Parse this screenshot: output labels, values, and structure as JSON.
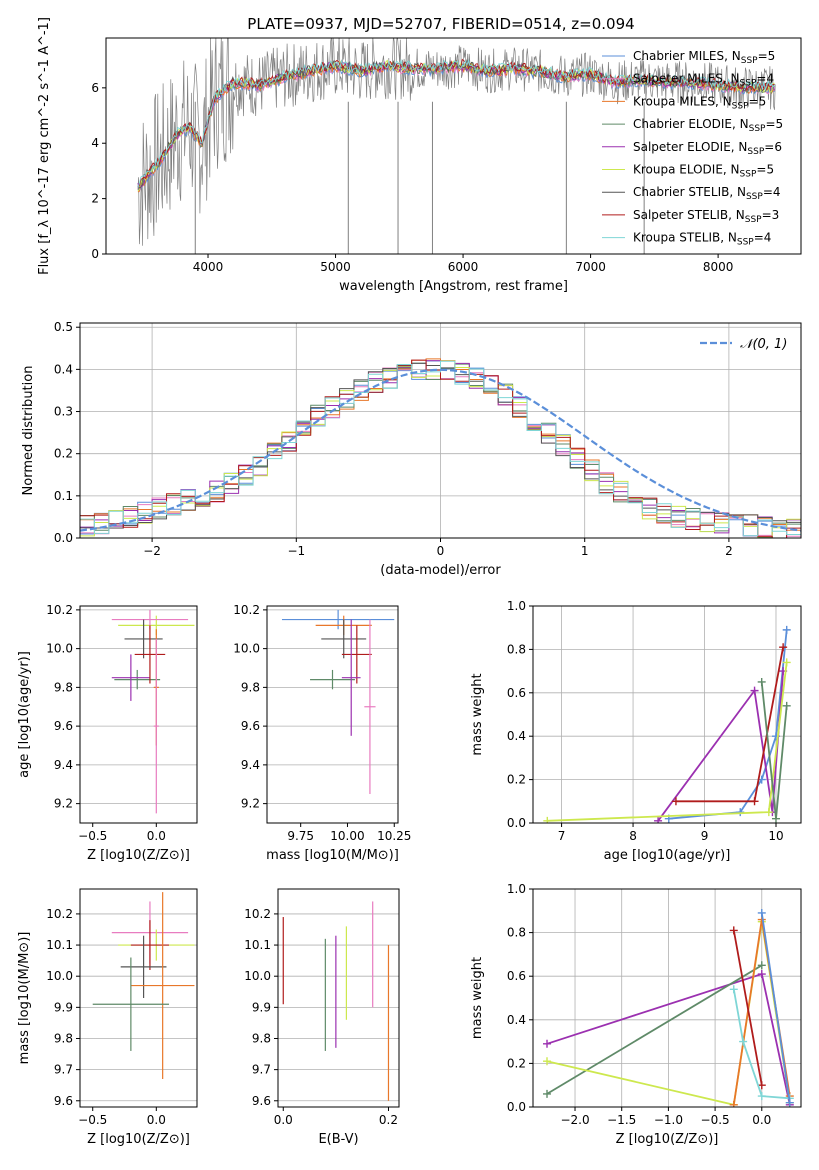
{
  "figure_title": "PLATE=0937, MJD=52707, FIBERID=0514, z=0.094",
  "colors": {
    "chabrier_miles": "#5b8fd9",
    "salpeter_miles": "#e87cc0",
    "kroupa_miles": "#e8772a",
    "chabrier_elodie": "#5f8a68",
    "salpeter_elodie": "#9b30b0",
    "kroupa_elodie": "#cde84e",
    "chabrier_stelib": "#555555",
    "salpeter_stelib": "#b01c1c",
    "kroupa_stelib": "#7fd6d6"
  },
  "chart_data": [
    {
      "id": "spectrum",
      "type": "line",
      "xlabel": "wavelength [Angstrom, rest frame]",
      "ylabel": "Flux [f_λ 10^-17 erg cm^-2 s^-1 A^-1]",
      "xlim": [
        3200,
        8650
      ],
      "ylim": [
        0,
        7.8
      ],
      "xticks": [
        4000,
        5000,
        6000,
        7000,
        8000
      ],
      "yticks": [
        0,
        2,
        4,
        6
      ],
      "legend_position": "right",
      "legend": [
        {
          "label": "Chabrier MILES, N",
          "sub": "SSP",
          "value": "=5",
          "color_key": "chabrier_miles"
        },
        {
          "label": "Salpeter MILES, N",
          "sub": "SSP",
          "value": "=4",
          "color_key": "salpeter_miles"
        },
        {
          "label": "Kroupa MILES, N",
          "sub": "SSP",
          "value": "=5",
          "color_key": "kroupa_miles"
        },
        {
          "label": "Chabrier ELODIE, N",
          "sub": "SSP",
          "value": "=5",
          "color_key": "chabrier_elodie"
        },
        {
          "label": "Salpeter ELODIE, N",
          "sub": "SSP",
          "value": "=6",
          "color_key": "salpeter_elodie"
        },
        {
          "label": "Kroupa ELODIE, N",
          "sub": "SSP",
          "value": "=5",
          "color_key": "kroupa_elodie"
        },
        {
          "label": "Chabrier STELIB, N",
          "sub": "SSP",
          "value": "=4",
          "color_key": "chabrier_stelib"
        },
        {
          "label": "Salpeter STELIB, N",
          "sub": "SSP",
          "value": "=3",
          "color_key": "salpeter_stelib"
        },
        {
          "label": "Kroupa STELIB, N",
          "sub": "SSP",
          "value": "=4",
          "color_key": "kroupa_stelib"
        }
      ],
      "data_series": {
        "x": [
          3450,
          3550,
          3650,
          3750,
          3850,
          3950,
          4050,
          4200,
          4400,
          4600,
          4800,
          5000,
          5200,
          5400,
          5600,
          5800,
          6000,
          6200,
          6400,
          6600,
          6800,
          7000,
          7200,
          7400,
          7600,
          7800,
          8000,
          8200,
          8400
        ],
        "y": [
          2.4,
          3.0,
          3.5,
          4.3,
          4.6,
          4.0,
          5.6,
          6.2,
          6.1,
          6.4,
          6.6,
          6.8,
          6.6,
          6.8,
          6.7,
          6.7,
          6.8,
          6.6,
          6.7,
          6.6,
          6.4,
          6.5,
          6.2,
          6.3,
          6.2,
          6.2,
          6.1,
          6.0,
          6.0
        ]
      },
      "spikes": [
        {
          "x": 3900,
          "y": 0
        },
        {
          "x": 5100,
          "y": 0
        },
        {
          "x": 5490,
          "y": 0
        },
        {
          "x": 5760,
          "y": 0
        },
        {
          "x": 6810,
          "y": 0
        },
        {
          "x": 7420,
          "y": 0
        }
      ]
    },
    {
      "id": "residuals",
      "type": "line",
      "xlabel": "(data-model)/error",
      "ylabel": "Normed distribution",
      "xlim": [
        -2.5,
        2.5
      ],
      "ylim": [
        0,
        0.51
      ],
      "xticks": [
        -2,
        -1,
        0,
        1,
        2
      ],
      "yticks": [
        0.0,
        0.1,
        0.2,
        0.3,
        0.4,
        0.5
      ],
      "grid": true,
      "legend_position": "top-right",
      "legend": [
        {
          "label": "𝒩(0, 1)",
          "style": "dashed",
          "color": "#5b8fd9"
        }
      ],
      "bin_width": 0.1,
      "hist_values": [
        0.03,
        0.035,
        0.04,
        0.05,
        0.06,
        0.07,
        0.08,
        0.09,
        0.1,
        0.11,
        0.13,
        0.15,
        0.17,
        0.2,
        0.23,
        0.26,
        0.29,
        0.31,
        0.33,
        0.35,
        0.37,
        0.38,
        0.39,
        0.4,
        0.4,
        0.4,
        0.39,
        0.38,
        0.36,
        0.34,
        0.31,
        0.28,
        0.25,
        0.22,
        0.19,
        0.16,
        0.13,
        0.11,
        0.09,
        0.07,
        0.06,
        0.05,
        0.045,
        0.04,
        0.035,
        0.03,
        0.03,
        0.025,
        0.02,
        0.02
      ]
    },
    {
      "id": "age_vs_Z",
      "type": "scatter",
      "xlabel": "Z [log10(Z/Z⊙)]",
      "ylabel": "age  [log10(age/yr)]",
      "xlim": [
        -0.6,
        0.32
      ],
      "ylim": [
        9.1,
        10.22
      ],
      "xticks": [
        -0.5,
        0.0
      ],
      "yticks": [
        9.2,
        9.4,
        9.6,
        9.8,
        10.0,
        10.2
      ],
      "points": [
        {
          "x": 0.0,
          "y": 10.12,
          "xerr": 0.3,
          "yerr": 0.05,
          "color_key": "kroupa_elodie"
        },
        {
          "x": -0.05,
          "y": 10.15,
          "xerr": 0.3,
          "yerr": 0.05,
          "color_key": "salpeter_miles"
        },
        {
          "x": -0.1,
          "y": 10.05,
          "xerr": 0.15,
          "yerr": 0.1,
          "color_key": "chabrier_stelib"
        },
        {
          "x": -0.15,
          "y": 9.84,
          "xerr": 0.18,
          "yerr": 0.05,
          "color_key": "chabrier_elodie"
        },
        {
          "x": -0.2,
          "y": 9.85,
          "xerr": 0.15,
          "yerr": 0.12,
          "color_key": "salpeter_elodie"
        },
        {
          "x": -0.05,
          "y": 9.97,
          "xerr": 0.12,
          "yerr": 0.15,
          "color_key": "salpeter_stelib"
        },
        {
          "x": 0.0,
          "y": 9.8,
          "xerr": 0.02,
          "yerr": 0.3,
          "color_key": "kroupa_miles"
        },
        {
          "x": 0.0,
          "y": 9.6,
          "xerr": 0.02,
          "yerr": 0.45,
          "color_key": "salpeter_miles"
        }
      ]
    },
    {
      "id": "age_vs_mass",
      "type": "scatter",
      "xlabel": "mass [log10(M/M⊙)]",
      "xlim": [
        9.57,
        10.27
      ],
      "ylim": [
        9.1,
        10.22
      ],
      "xticks": [
        9.75,
        10.0,
        10.25
      ],
      "yticks": [
        9.2,
        9.4,
        9.6,
        9.8,
        10.0,
        10.2
      ],
      "points": [
        {
          "x": 9.95,
          "y": 10.15,
          "xerr": 0.3,
          "yerr": 0.05,
          "color_key": "chabrier_miles"
        },
        {
          "x": 9.98,
          "y": 10.12,
          "xerr": 0.15,
          "yerr": 0.05,
          "color_key": "kroupa_miles"
        },
        {
          "x": 9.98,
          "y": 10.05,
          "xerr": 0.12,
          "yerr": 0.1,
          "color_key": "chabrier_stelib"
        },
        {
          "x": 9.92,
          "y": 9.84,
          "xerr": 0.12,
          "yerr": 0.05,
          "color_key": "chabrier_elodie"
        },
        {
          "x": 10.05,
          "y": 9.97,
          "xerr": 0.08,
          "yerr": 0.15,
          "color_key": "salpeter_stelib"
        },
        {
          "x": 10.02,
          "y": 9.85,
          "xerr": 0.05,
          "yerr": 0.3,
          "color_key": "salpeter_elodie"
        },
        {
          "x": 10.12,
          "y": 9.7,
          "xerr": 0.03,
          "yerr": 0.45,
          "color_key": "salpeter_miles"
        }
      ]
    },
    {
      "id": "weight_vs_age",
      "type": "line",
      "xlabel": "age  [log10(age/yr)]",
      "ylabel": "mass weight",
      "xlim": [
        6.6,
        10.35
      ],
      "ylim": [
        0,
        1.0
      ],
      "xticks": [
        7,
        8,
        9,
        10
      ],
      "yticks": [
        0.0,
        0.2,
        0.4,
        0.6,
        0.8,
        1.0
      ],
      "grid": true,
      "series": [
        {
          "color_key": "chabrier_miles",
          "x": [
            8.5,
            9.5,
            9.8,
            10.0,
            10.15
          ],
          "y": [
            0.02,
            0.05,
            0.2,
            0.4,
            0.89
          ]
        },
        {
          "color_key": "salpeter_elodie",
          "x": [
            8.35,
            9.7,
            9.95,
            10.1
          ],
          "y": [
            0.01,
            0.61,
            0.05,
            0.7
          ]
        },
        {
          "color_key": "salpeter_stelib",
          "x": [
            8.6,
            9.7,
            10.1
          ],
          "y": [
            0.1,
            0.1,
            0.81
          ]
        },
        {
          "color_key": "kroupa_elodie",
          "x": [
            6.8,
            9.9,
            10.15
          ],
          "y": [
            0.01,
            0.05,
            0.74
          ]
        },
        {
          "color_key": "chabrier_elodie",
          "x": [
            9.8,
            10.0,
            10.15
          ],
          "y": [
            0.65,
            0.02,
            0.54
          ]
        }
      ]
    },
    {
      "id": "mass_vs_Z",
      "type": "scatter",
      "xlabel": "Z [log10(Z/Z⊙)]",
      "ylabel": "mass [log10(M/M⊙)]",
      "xlim": [
        -0.6,
        0.32
      ],
      "ylim": [
        9.58,
        10.28
      ],
      "xticks": [
        -0.5,
        0.0
      ],
      "yticks": [
        9.6,
        9.7,
        9.8,
        9.9,
        10.0,
        10.1,
        10.2
      ],
      "points": [
        {
          "x": -0.05,
          "y": 10.14,
          "xerr": 0.3,
          "yerr": 0.1,
          "color_key": "salpeter_miles"
        },
        {
          "x": 0.0,
          "y": 10.1,
          "xerr": 0.3,
          "yerr": 0.05,
          "color_key": "kroupa_elodie"
        },
        {
          "x": -0.05,
          "y": 10.1,
          "xerr": 0.15,
          "yerr": 0.08,
          "color_key": "salpeter_stelib"
        },
        {
          "x": -0.1,
          "y": 10.03,
          "xerr": 0.18,
          "yerr": 0.1,
          "color_key": "chabrier_stelib"
        },
        {
          "x": 0.05,
          "y": 9.97,
          "xerr": 0.25,
          "yerr": 0.3,
          "color_key": "kroupa_miles"
        },
        {
          "x": -0.2,
          "y": 9.91,
          "xerr": 0.3,
          "yerr": 0.15,
          "color_key": "chabrier_elodie"
        }
      ]
    },
    {
      "id": "mass_vs_ebv",
      "type": "scatter",
      "xlabel": "E(B-V)",
      "xlim": [
        -0.01,
        0.22
      ],
      "ylim": [
        9.58,
        10.28
      ],
      "xticks": [
        0.0,
        0.2
      ],
      "yticks": [
        9.6,
        9.7,
        9.8,
        9.9,
        10.0,
        10.1,
        10.2
      ],
      "points": [
        {
          "x": 0.0,
          "y": 10.05,
          "yerr": 0.14,
          "color_key": "salpeter_stelib"
        },
        {
          "x": 0.08,
          "y": 9.94,
          "yerr": 0.18,
          "color_key": "chabrier_elodie"
        },
        {
          "x": 0.1,
          "y": 9.95,
          "yerr": 0.18,
          "color_key": "salpeter_elodie"
        },
        {
          "x": 0.12,
          "y": 10.01,
          "yerr": 0.15,
          "color_key": "kroupa_elodie"
        },
        {
          "x": 0.17,
          "y": 10.07,
          "yerr": 0.17,
          "color_key": "salpeter_miles"
        },
        {
          "x": 0.2,
          "y": 9.85,
          "yerr": 0.25,
          "color_key": "kroupa_miles"
        }
      ]
    },
    {
      "id": "weight_vs_Z",
      "type": "line",
      "xlabel": "Z [log10(Z/Z⊙)]",
      "ylabel": "mass weight",
      "xlim": [
        -2.45,
        0.42
      ],
      "ylim": [
        0,
        1.0
      ],
      "xticks": [
        -2.0,
        -1.5,
        -1.0,
        -0.5,
        0.0
      ],
      "yticks": [
        0.0,
        0.2,
        0.4,
        0.6,
        0.8,
        1.0
      ],
      "grid": true,
      "series": [
        {
          "color_key": "salpeter_elodie",
          "x": [
            -2.3,
            0.0,
            0.3
          ],
          "y": [
            0.29,
            0.61,
            0.01
          ]
        },
        {
          "color_key": "chabrier_elodie",
          "x": [
            -2.3,
            0.0
          ],
          "y": [
            0.06,
            0.65
          ]
        },
        {
          "color_key": "kroupa_elodie",
          "x": [
            -2.3,
            -0.3,
            0.0,
            0.3
          ],
          "y": [
            0.21,
            0.01,
            0.85,
            0.02
          ]
        },
        {
          "color_key": "kroupa_miles",
          "x": [
            -0.3,
            0.0,
            0.3
          ],
          "y": [
            0.01,
            0.86,
            0.05
          ]
        },
        {
          "color_key": "salpeter_stelib",
          "x": [
            -0.3,
            0.0
          ],
          "y": [
            0.81,
            0.1
          ]
        },
        {
          "color_key": "kroupa_stelib",
          "x": [
            -0.3,
            -0.2,
            0.0,
            0.3
          ],
          "y": [
            0.54,
            0.3,
            0.05,
            0.04
          ]
        },
        {
          "color_key": "chabrier_miles",
          "x": [
            0.0,
            0.3
          ],
          "y": [
            0.89,
            0.02
          ]
        }
      ]
    }
  ]
}
